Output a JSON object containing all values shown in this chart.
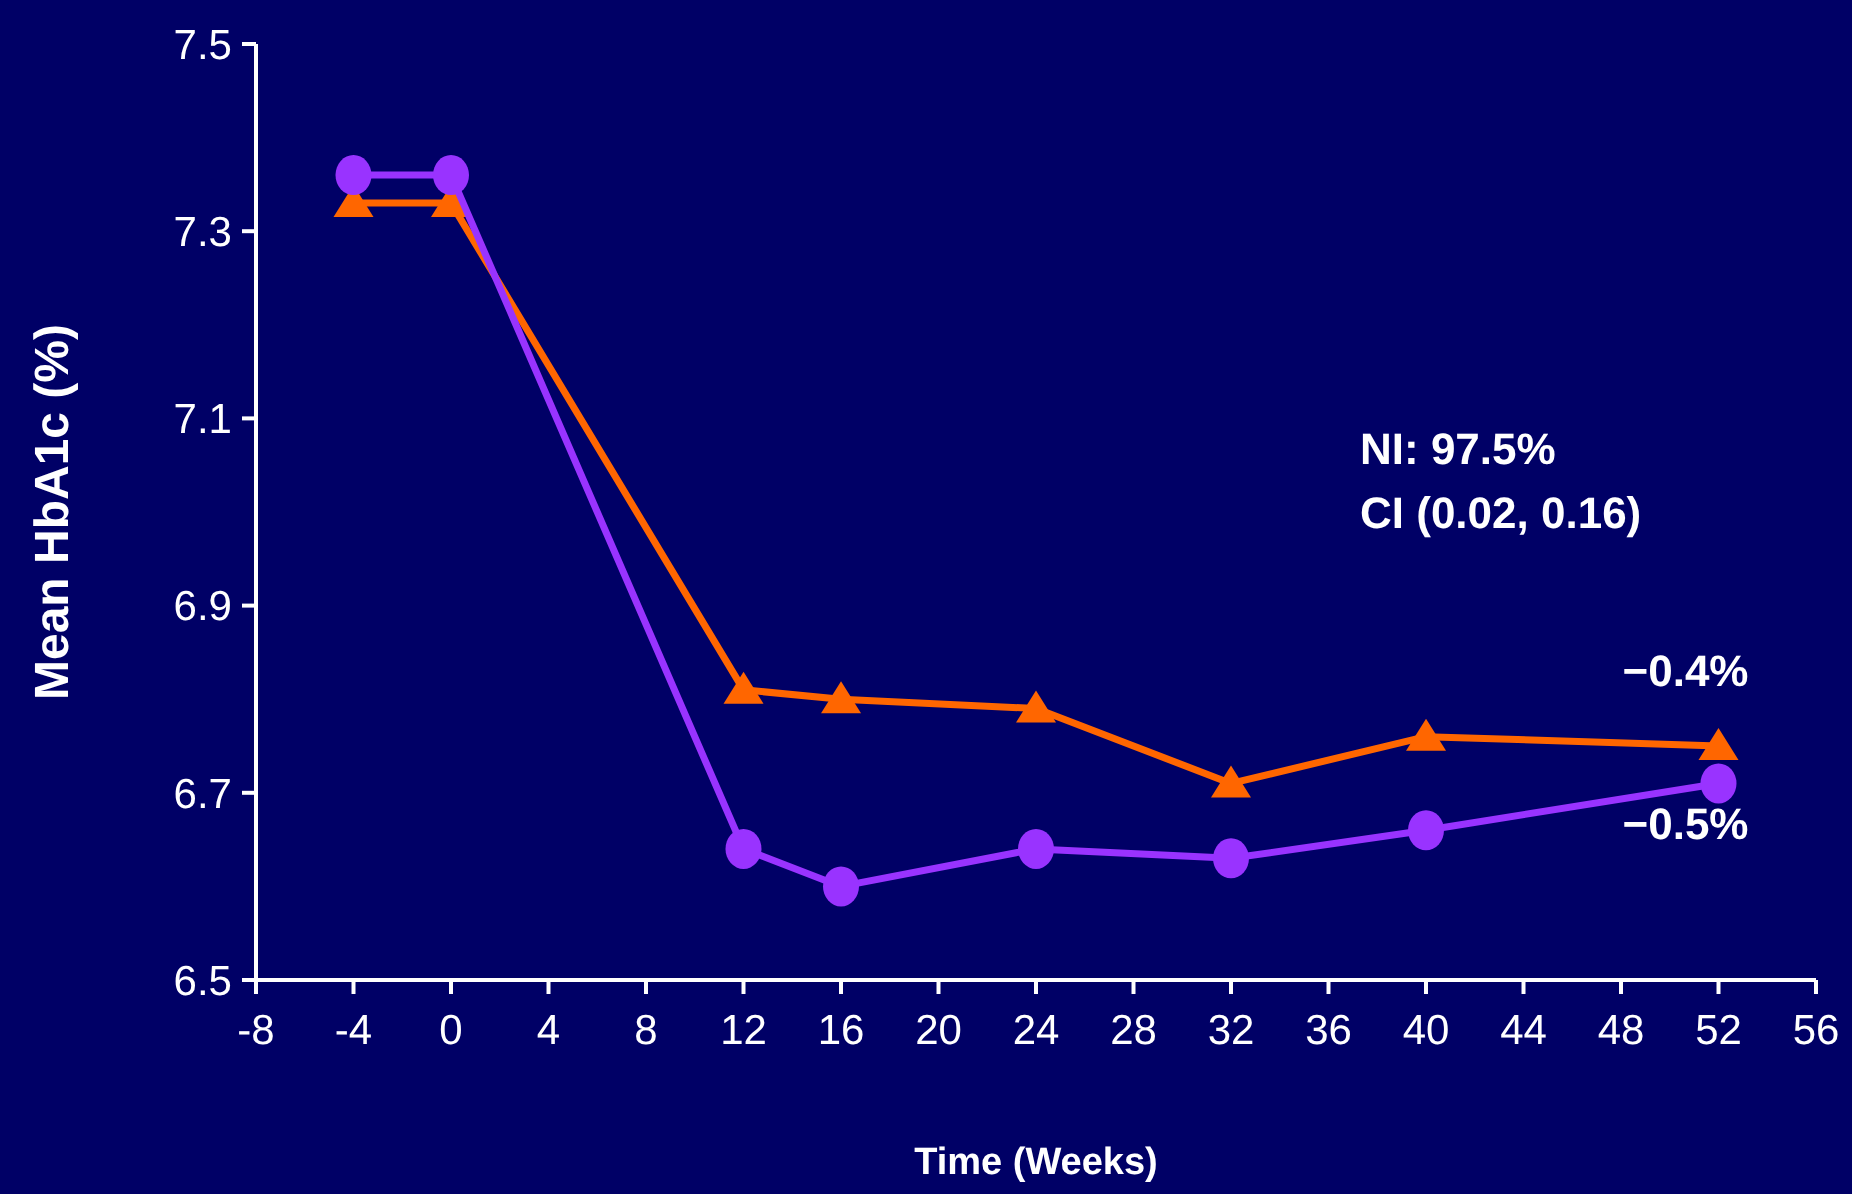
{
  "chart_data": {
    "type": "line",
    "xlabel": "Time (Weeks)",
    "ylabel": "Mean HbA1c (%)",
    "x": [
      -4,
      0,
      12,
      16,
      24,
      32,
      40,
      52
    ],
    "series": [
      {
        "color": "#ff6600",
        "marker": "triangle",
        "values": [
          7.33,
          7.33,
          6.81,
          6.8,
          6.79,
          6.71,
          6.76,
          6.75
        ]
      },
      {
        "color": "#9933ff",
        "marker": "circle",
        "values": [
          7.36,
          7.36,
          6.64,
          6.6,
          6.64,
          6.63,
          6.66,
          6.71
        ]
      }
    ],
    "xlim": [
      -8,
      56
    ],
    "xticks": [
      -8,
      -4,
      0,
      4,
      8,
      12,
      16,
      20,
      24,
      28,
      32,
      36,
      40,
      44,
      48,
      52,
      56
    ],
    "ylim": [
      6.5,
      7.5
    ],
    "yticks": [
      6.5,
      6.7,
      6.9,
      7.1,
      7.3,
      7.5
    ],
    "grid": false,
    "annotations": [
      "NI: 97.5%",
      "CI (0.02, 0.16)",
      {
        "text": "−0.4%",
        "x": 52,
        "y": 6.75
      },
      {
        "text": "−0.5%",
        "x": 52,
        "y": 6.71
      }
    ]
  }
}
